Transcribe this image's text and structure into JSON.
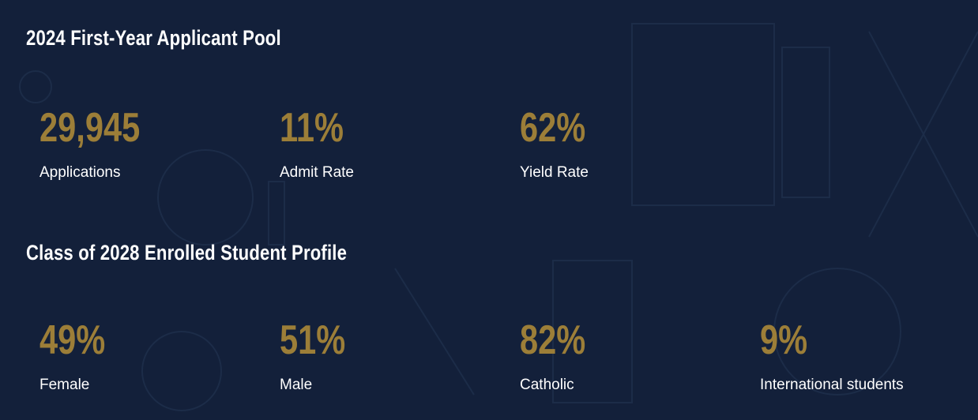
{
  "colors": {
    "background": "#13203a",
    "accent": "#9c7e38",
    "text": "#ffffff"
  },
  "applicant_pool": {
    "title": "2024 First-Year Applicant Pool",
    "stats": [
      {
        "value": "29,945",
        "label": "Applications"
      },
      {
        "value": "11%",
        "label": "Admit Rate"
      },
      {
        "value": "62%",
        "label": "Yield Rate"
      }
    ]
  },
  "enrolled_profile": {
    "title": "Class of 2028 Enrolled Student Profile",
    "stats": [
      {
        "value": "49%",
        "label": "Female"
      },
      {
        "value": "51%",
        "label": "Male"
      },
      {
        "value": "82%",
        "label": "Catholic"
      },
      {
        "value": "9%",
        "label": "International students"
      }
    ]
  }
}
